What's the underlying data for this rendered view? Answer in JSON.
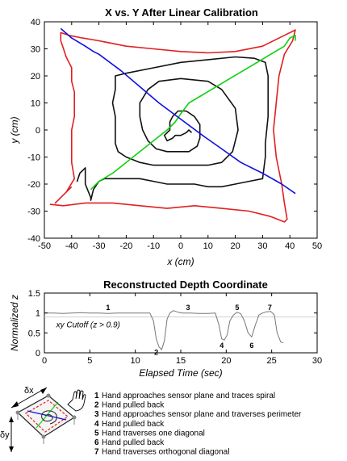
{
  "chart_data": [
    {
      "type": "line",
      "title": "X vs. Y After Linear Calibration",
      "xlabel": "x (cm)",
      "ylabel": "y (cm)",
      "xlim": [
        -50,
        50
      ],
      "ylim": [
        -40,
        40
      ],
      "xticks": [
        -50,
        -40,
        -30,
        -20,
        -10,
        0,
        10,
        20,
        30,
        40,
        50
      ],
      "yticks": [
        -40,
        -30,
        -20,
        -10,
        0,
        10,
        20,
        30,
        40
      ],
      "grid": false,
      "series": [
        {
          "color": "#e02020",
          "points": [
            [
              -40,
              -21
            ],
            [
              -46,
              -27
            ],
            [
              -42,
              -23
            ],
            [
              -39,
              -18
            ],
            [
              -40,
              -12
            ],
            [
              -40,
              -5
            ],
            [
              -40,
              0
            ],
            [
              -39,
              5
            ],
            [
              -39,
              10
            ],
            [
              -39,
              14
            ],
            [
              -40,
              18
            ],
            [
              -40,
              23
            ],
            [
              -42,
              27
            ],
            [
              -43,
              30
            ],
            [
              -44,
              33
            ],
            [
              -44,
              36
            ],
            [
              -41,
              35
            ],
            [
              -36,
              34
            ],
            [
              -30,
              33
            ],
            [
              -20,
              31
            ],
            [
              -10,
              30
            ],
            [
              0,
              29
            ],
            [
              10,
              28.5
            ],
            [
              20,
              29
            ],
            [
              30,
              31
            ],
            [
              38,
              35
            ],
            [
              42,
              37
            ],
            [
              41,
              33
            ],
            [
              38,
              28
            ],
            [
              36,
              20
            ],
            [
              35,
              10
            ],
            [
              34,
              0
            ],
            [
              35,
              -10
            ],
            [
              37,
              -20
            ],
            [
              38,
              -27
            ],
            [
              39,
              -33
            ],
            [
              38,
              -34
            ],
            [
              33,
              -32
            ],
            [
              25,
              -30
            ],
            [
              15,
              -29
            ],
            [
              5,
              -28
            ],
            [
              -5,
              -29
            ],
            [
              -15,
              -28
            ],
            [
              -25,
              -27
            ],
            [
              -35,
              -27
            ],
            [
              -43,
              -28
            ],
            [
              -48,
              -27.5
            ]
          ]
        },
        {
          "color": "#111111",
          "points": [
            [
              -37,
              -16
            ],
            [
              -38,
              -19
            ],
            [
              -37,
              -16
            ],
            [
              -35,
              -14
            ],
            [
              -35,
              -20
            ],
            [
              -33,
              -25
            ],
            [
              -33,
              -26
            ],
            [
              -32,
              -22
            ],
            [
              -30,
              -19
            ],
            [
              -28,
              -18
            ],
            [
              -20,
              -18
            ],
            [
              -15,
              -18
            ],
            [
              -10,
              -19
            ],
            [
              -5,
              -20
            ],
            [
              5,
              -20
            ],
            [
              10,
              -21
            ],
            [
              15,
              -21
            ],
            [
              20,
              -20
            ],
            [
              25,
              -19
            ],
            [
              30,
              -18
            ],
            [
              31,
              -10
            ],
            [
              31,
              -5
            ],
            [
              32,
              5
            ],
            [
              32,
              15
            ],
            [
              32,
              20
            ],
            [
              31,
              25
            ],
            [
              27,
              26.5
            ],
            [
              20,
              27
            ],
            [
              10,
              26
            ],
            [
              0,
              25
            ],
            [
              -10,
              23
            ],
            [
              -20,
              21
            ],
            [
              -24,
              20
            ],
            [
              -24,
              15
            ],
            [
              -25,
              10
            ],
            [
              -24,
              5
            ],
            [
              -24,
              0
            ],
            [
              -24,
              -5
            ],
            [
              -23,
              -8
            ],
            [
              -20,
              -10
            ],
            [
              -15,
              -12
            ],
            [
              -10,
              -13
            ],
            [
              -5,
              -13
            ],
            [
              0,
              -13
            ],
            [
              5,
              -13
            ],
            [
              10,
              -13
            ],
            [
              15,
              -12
            ],
            [
              19,
              -8
            ],
            [
              21,
              0
            ],
            [
              20,
              8
            ],
            [
              15,
              15
            ],
            [
              10,
              18
            ],
            [
              0,
              19
            ],
            [
              -8,
              18
            ],
            [
              -12,
              15
            ],
            [
              -15,
              10
            ],
            [
              -15,
              5
            ],
            [
              -14,
              0
            ],
            [
              -12,
              -4
            ],
            [
              -9,
              -7
            ],
            [
              -5,
              -8
            ],
            [
              0,
              -8
            ],
            [
              3,
              -8
            ],
            [
              6,
              -6
            ],
            [
              7,
              -3
            ],
            [
              7,
              2
            ],
            [
              5,
              5
            ],
            [
              2,
              7
            ],
            [
              -1,
              7
            ],
            [
              -3,
              5
            ],
            [
              -4,
              3
            ],
            [
              -4,
              0
            ],
            [
              -6,
              -2
            ],
            [
              -5,
              -4
            ],
            [
              -3,
              -3
            ],
            [
              -2,
              -2
            ],
            [
              0,
              -2
            ],
            [
              2,
              -1
            ],
            [
              3,
              0
            ],
            [
              4,
              -1
            ]
          ]
        },
        {
          "color": "#10d010",
          "points": [
            [
              -33,
              -22
            ],
            [
              -30,
              -19
            ],
            [
              -25,
              -16
            ],
            [
              -20,
              -12
            ],
            [
              -15,
              -8
            ],
            [
              -10,
              -4
            ],
            [
              -5,
              0
            ],
            [
              -2,
              3
            ],
            [
              0,
              6
            ],
            [
              3,
              10
            ],
            [
              8,
              13
            ],
            [
              13,
              16
            ],
            [
              18,
              19
            ],
            [
              23,
              22
            ],
            [
              28,
              25
            ],
            [
              33,
              28
            ],
            [
              38,
              31
            ],
            [
              40,
              34
            ],
            [
              42,
              35
            ],
            [
              42,
              33
            ]
          ]
        },
        {
          "color": "#1010e0",
          "points": [
            [
              -44,
              37.5
            ],
            [
              -40,
              34
            ],
            [
              -35,
              31
            ],
            [
              -32,
              29
            ],
            [
              -30,
              28
            ],
            [
              -22,
              22
            ],
            [
              -15,
              16
            ],
            [
              -8,
              10
            ],
            [
              0,
              4
            ],
            [
              8,
              -2
            ],
            [
              15,
              -7
            ],
            [
              22,
              -12
            ],
            [
              30,
              -16
            ],
            [
              37,
              -20
            ],
            [
              42,
              -23.5
            ]
          ]
        }
      ]
    },
    {
      "type": "line",
      "title": "Reconstructed Depth Coordinate",
      "xlabel": "Elapsed Time (sec)",
      "ylabel": "Normalized z",
      "xlim": [
        0,
        30
      ],
      "ylim": [
        0,
        1.5
      ],
      "xticks": [
        0,
        5,
        10,
        15,
        20,
        25,
        30
      ],
      "yticks": [
        0,
        0.5,
        1,
        1.5
      ],
      "grid": false,
      "threshold": 0.9,
      "threshold_label": "xy Cutoff (z > 0.9)",
      "series": [
        {
          "color": "#777777",
          "points": [
            [
              0,
              1.0
            ],
            [
              1,
              1.0
            ],
            [
              2,
              0.99
            ],
            [
              3,
              1.0
            ],
            [
              4,
              1.01
            ],
            [
              5,
              1.0
            ],
            [
              6,
              1.0
            ],
            [
              7,
              0.99
            ],
            [
              8,
              1.0
            ],
            [
              9,
              1.0
            ],
            [
              10,
              1.0
            ],
            [
              11,
              1.0
            ],
            [
              11.6,
              1.0
            ],
            [
              12,
              0.8
            ],
            [
              12.3,
              0.35
            ],
            [
              12.6,
              0.15
            ],
            [
              12.9,
              0.08
            ],
            [
              13.2,
              0.3
            ],
            [
              13.5,
              0.85
            ],
            [
              13.8,
              1.0
            ],
            [
              14.2,
              1.06
            ],
            [
              14.7,
              1.02
            ],
            [
              15.2,
              1.0
            ],
            [
              16,
              1.0
            ],
            [
              17,
              0.99
            ],
            [
              18,
              0.99
            ],
            [
              18.8,
              1.0
            ],
            [
              19.2,
              0.7
            ],
            [
              19.5,
              0.35
            ],
            [
              19.8,
              0.32
            ],
            [
              20.1,
              0.45
            ],
            [
              20.4,
              0.8
            ],
            [
              20.8,
              0.95
            ],
            [
              21.2,
              1.02
            ],
            [
              21.6,
              0.98
            ],
            [
              22,
              0.8
            ],
            [
              22.4,
              0.5
            ],
            [
              22.8,
              0.4
            ],
            [
              23.2,
              0.7
            ],
            [
              23.6,
              0.95
            ],
            [
              24,
              1.0
            ],
            [
              24.4,
              1.03
            ],
            [
              24.9,
              1.04
            ],
            [
              25.3,
              0.95
            ],
            [
              25.6,
              0.5
            ],
            [
              26,
              0.27
            ],
            [
              26.3,
              0.25
            ]
          ]
        }
      ],
      "annotations": [
        {
          "label": "1",
          "x": 7,
          "y": 1.07
        },
        {
          "label": "2",
          "x": 12.3,
          "y": -0.05
        },
        {
          "label": "3",
          "x": 15.8,
          "y": 1.07
        },
        {
          "label": "4",
          "x": 19.5,
          "y": 0.12
        },
        {
          "label": "5",
          "x": 21.2,
          "y": 1.07
        },
        {
          "label": "6",
          "x": 22.8,
          "y": 0.12
        },
        {
          "label": "7",
          "x": 24.8,
          "y": 1.07
        }
      ]
    }
  ],
  "diagram": {
    "dx_label": "δx",
    "dy_label": "δy"
  },
  "legend": [
    {
      "num": "1",
      "text": "Hand approaches sensor plane and traces spiral"
    },
    {
      "num": "2",
      "text": "Hand pulled back"
    },
    {
      "num": "3",
      "text": "Hand approaches sensor plane and traverses perimeter"
    },
    {
      "num": "4",
      "text": "Hand pulled back"
    },
    {
      "num": "5",
      "text": "Hand traverses one diagonal"
    },
    {
      "num": "6",
      "text": "Hand pulled back"
    },
    {
      "num": "7",
      "text": "Hand traverses orthogonal diagonal"
    }
  ]
}
